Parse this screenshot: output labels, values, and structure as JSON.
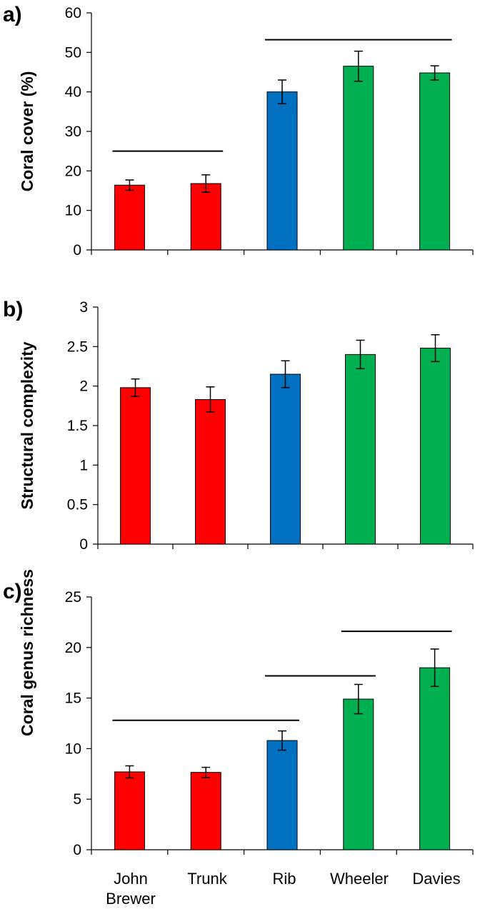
{
  "x_categories": [
    {
      "line1": "John",
      "line2": "Brewer"
    },
    {
      "line1": "Trunk",
      "line2": ""
    },
    {
      "line1": "Rib",
      "line2": ""
    },
    {
      "line1": "Wheeler",
      "line2": ""
    },
    {
      "line1": "Davies",
      "line2": ""
    }
  ],
  "colors": {
    "red": "#ff0000",
    "blue": "#0070c0",
    "green": "#00b050",
    "outline": "#000000"
  },
  "chart_data": [
    {
      "type": "bar",
      "panel_label": "a)",
      "ylabel": "Coral cover (%)",
      "categories": [
        "John Brewer",
        "Trunk",
        "Rib",
        "Wheeler",
        "Davies"
      ],
      "values": [
        16.4,
        16.8,
        40.0,
        46.5,
        44.8
      ],
      "errors": [
        1.3,
        2.2,
        3.0,
        3.8,
        1.8
      ],
      "bar_colors": [
        "red",
        "red",
        "blue",
        "green",
        "green"
      ],
      "ylim": [
        0,
        60
      ],
      "yticks": [
        0,
        10,
        20,
        30,
        40,
        50,
        60
      ],
      "ytick_labels": [
        "0",
        "10",
        "20",
        "30",
        "40",
        "50",
        "60"
      ],
      "grouping_lines": [
        {
          "from": "John Brewer",
          "to": "Trunk",
          "y": 25
        },
        {
          "from": "Rib",
          "to": "Davies",
          "y": 53.2
        }
      ],
      "grid": false,
      "legend": "none"
    },
    {
      "type": "bar",
      "panel_label": "b)",
      "ylabel": "Structural complexity",
      "categories": [
        "John Brewer",
        "Trunk",
        "Rib",
        "Wheeler",
        "Davies"
      ],
      "values": [
        1.98,
        1.83,
        2.15,
        2.4,
        2.48
      ],
      "errors": [
        0.11,
        0.16,
        0.17,
        0.18,
        0.17
      ],
      "bar_colors": [
        "red",
        "red",
        "blue",
        "green",
        "green"
      ],
      "ylim": [
        0,
        3
      ],
      "yticks": [
        0,
        0.5,
        1,
        1.5,
        2,
        2.5,
        3
      ],
      "ytick_labels": [
        "0",
        "0.5",
        "1",
        "1.5",
        "2",
        "2.5",
        "3"
      ],
      "grouping_lines": [],
      "grid": false,
      "legend": "none"
    },
    {
      "type": "bar",
      "panel_label": "c)",
      "ylabel": "Coral genus richness",
      "categories": [
        "John Brewer",
        "Trunk",
        "Rib",
        "Wheeler",
        "Davies"
      ],
      "values": [
        7.7,
        7.65,
        10.8,
        14.9,
        18.0
      ],
      "errors": [
        0.6,
        0.5,
        0.95,
        1.45,
        1.85
      ],
      "bar_colors": [
        "red",
        "red",
        "blue",
        "green",
        "green"
      ],
      "ylim": [
        0,
        25
      ],
      "yticks": [
        0,
        5,
        10,
        15,
        20,
        25
      ],
      "ytick_labels": [
        "0",
        "5",
        "10",
        "15",
        "20",
        "25"
      ],
      "grouping_lines": [
        {
          "from": "John Brewer",
          "to": "Rib",
          "y": 12.8
        },
        {
          "from": "Rib",
          "to": "Wheeler",
          "y": 17.2
        },
        {
          "from": "Wheeler",
          "to": "Davies",
          "y": 21.6
        }
      ],
      "grid": false,
      "legend": "none"
    }
  ]
}
